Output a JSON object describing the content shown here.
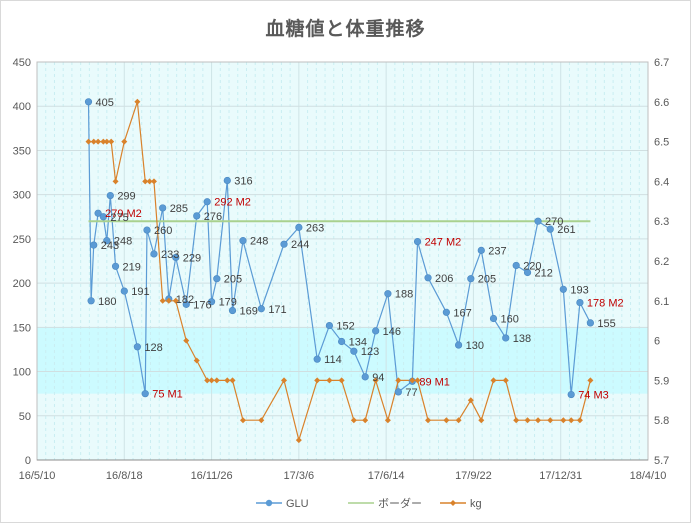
{
  "chart_data": {
    "type": "line",
    "title": "血糖値と体重推移",
    "x_axis": {
      "type": "date",
      "min": "2016-05-10",
      "max": "2018-04-10",
      "ticks": [
        "2016-05-10",
        "2016-08-18",
        "2016-11-26",
        "2017-03-06",
        "2017-06-14",
        "2017-09-22",
        "2017-12-31",
        "2018-04-10"
      ],
      "tick_labels": [
        "16/5/10",
        "16/8/18",
        "16/11/26",
        "17/3/6",
        "17/6/14",
        "17/9/22",
        "17/12/31",
        "18/4/10"
      ]
    },
    "y_left": {
      "min": 0,
      "max": 450,
      "step": 50,
      "tick_labels": [
        "0",
        "50",
        "100",
        "150",
        "200",
        "250",
        "300",
        "350",
        "400",
        "450"
      ]
    },
    "y_right": {
      "min": 5.7,
      "max": 6.7,
      "step": 0.1,
      "tick_labels": [
        "5.7",
        "5.8",
        "5.9",
        "6",
        "6.1",
        "6.2",
        "6.3",
        "6.4",
        "6.5",
        "6.6",
        "6.7"
      ]
    },
    "target_band": {
      "min": 75,
      "max": 150,
      "color": "#ccfbff"
    },
    "plot_background": "#e9fbfc",
    "grid": true,
    "legend_position": "bottom",
    "series": [
      {
        "name": "GLU",
        "axis": "left",
        "color": "#5b9bd5",
        "points": [
          {
            "x": "2016-07-08",
            "y": 405,
            "label": "405"
          },
          {
            "x": "2016-07-11",
            "y": 180,
            "label": "180"
          },
          {
            "x": "2016-07-14",
            "y": 243,
            "label": "243"
          },
          {
            "x": "2016-07-19",
            "y": 279,
            "label": "279 M2"
          },
          {
            "x": "2016-07-25",
            "y": 275,
            "label": "275"
          },
          {
            "x": "2016-07-29",
            "y": 248,
            "label": "248"
          },
          {
            "x": "2016-08-02",
            "y": 299,
            "label": "299"
          },
          {
            "x": "2016-08-08",
            "y": 219,
            "label": "219"
          },
          {
            "x": "2016-08-18",
            "y": 191,
            "label": "191"
          },
          {
            "x": "2016-09-02",
            "y": 128,
            "label": "128"
          },
          {
            "x": "2016-09-11",
            "y": 75,
            "label": "75 M1"
          },
          {
            "x": "2016-09-13",
            "y": 260,
            "label": "260"
          },
          {
            "x": "2016-09-21",
            "y": 233,
            "label": "233"
          },
          {
            "x": "2016-10-01",
            "y": 285,
            "label": "285"
          },
          {
            "x": "2016-10-08",
            "y": 182,
            "label": "182"
          },
          {
            "x": "2016-10-16",
            "y": 229,
            "label": "229"
          },
          {
            "x": "2016-10-28",
            "y": 176,
            "label": "176"
          },
          {
            "x": "2016-11-09",
            "y": 276,
            "label": "276"
          },
          {
            "x": "2016-11-21",
            "y": 292,
            "label": "292 M2"
          },
          {
            "x": "2016-11-26",
            "y": 179,
            "label": "179"
          },
          {
            "x": "2016-12-02",
            "y": 205,
            "label": "205"
          },
          {
            "x": "2016-12-14",
            "y": 316,
            "label": "316"
          },
          {
            "x": "2016-12-20",
            "y": 169,
            "label": "169"
          },
          {
            "x": "2017-01-01",
            "y": 248,
            "label": "248"
          },
          {
            "x": "2017-01-22",
            "y": 171,
            "label": "171"
          },
          {
            "x": "2017-02-17",
            "y": 244,
            "label": "244"
          },
          {
            "x": "2017-03-06",
            "y": 263,
            "label": "263"
          },
          {
            "x": "2017-03-27",
            "y": 114,
            "label": "114"
          },
          {
            "x": "2017-04-10",
            "y": 152,
            "label": "152"
          },
          {
            "x": "2017-04-24",
            "y": 134,
            "label": "134"
          },
          {
            "x": "2017-05-08",
            "y": 123,
            "label": "123"
          },
          {
            "x": "2017-05-21",
            "y": 94,
            "label": "94"
          },
          {
            "x": "2017-06-02",
            "y": 146,
            "label": "146"
          },
          {
            "x": "2017-06-16",
            "y": 188,
            "label": "188"
          },
          {
            "x": "2017-06-28",
            "y": 77,
            "label": "77"
          },
          {
            "x": "2017-07-14",
            "y": 89,
            "label": "89 M1"
          },
          {
            "x": "2017-07-20",
            "y": 247,
            "label": "247 M2"
          },
          {
            "x": "2017-08-01",
            "y": 206,
            "label": "206"
          },
          {
            "x": "2017-08-22",
            "y": 167,
            "label": "167"
          },
          {
            "x": "2017-09-05",
            "y": 130,
            "label": "130"
          },
          {
            "x": "2017-09-19",
            "y": 205,
            "label": "205"
          },
          {
            "x": "2017-10-01",
            "y": 237,
            "label": "237"
          },
          {
            "x": "2017-10-15",
            "y": 160,
            "label": "160"
          },
          {
            "x": "2017-10-29",
            "y": 138,
            "label": "138"
          },
          {
            "x": "2017-11-10",
            "y": 220,
            "label": "220"
          },
          {
            "x": "2017-11-23",
            "y": 212,
            "label": "212"
          },
          {
            "x": "2017-12-05",
            "y": 270,
            "label": "270"
          },
          {
            "x": "2017-12-19",
            "y": 261,
            "label": "261"
          },
          {
            "x": "2018-01-03",
            "y": 193,
            "label": "193"
          },
          {
            "x": "2018-01-12",
            "y": 74,
            "label": "74 M3"
          },
          {
            "x": "2018-01-22",
            "y": 178,
            "label": "178 M2"
          },
          {
            "x": "2018-02-03",
            "y": 155,
            "label": "155"
          }
        ]
      },
      {
        "name": "ボーダー",
        "axis": "left",
        "color": "#a9d18e",
        "points": [
          {
            "x": "2016-07-08",
            "y": 270
          },
          {
            "x": "2018-02-03",
            "y": 270
          }
        ]
      },
      {
        "name": "kg",
        "axis": "right",
        "color": "#d9822b",
        "points": [
          {
            "x": "2016-07-08",
            "y": 6.5
          },
          {
            "x": "2016-07-14",
            "y": 6.5
          },
          {
            "x": "2016-07-19",
            "y": 6.5
          },
          {
            "x": "2016-07-25",
            "y": 6.5
          },
          {
            "x": "2016-07-29",
            "y": 6.5
          },
          {
            "x": "2016-08-03",
            "y": 6.5
          },
          {
            "x": "2016-08-08",
            "y": 6.4
          },
          {
            "x": "2016-08-18",
            "y": 6.5
          },
          {
            "x": "2016-09-02",
            "y": 6.6
          },
          {
            "x": "2016-09-11",
            "y": 6.4
          },
          {
            "x": "2016-09-16",
            "y": 6.4
          },
          {
            "x": "2016-09-21",
            "y": 6.4
          },
          {
            "x": "2016-10-01",
            "y": 6.1
          },
          {
            "x": "2016-10-08",
            "y": 6.1
          },
          {
            "x": "2016-10-16",
            "y": 6.1
          },
          {
            "x": "2016-10-28",
            "y": 6.0
          },
          {
            "x": "2016-11-09",
            "y": 5.95
          },
          {
            "x": "2016-11-21",
            "y": 5.9
          },
          {
            "x": "2016-11-26",
            "y": 5.9
          },
          {
            "x": "2016-12-02",
            "y": 5.9
          },
          {
            "x": "2016-12-14",
            "y": 5.9
          },
          {
            "x": "2016-12-20",
            "y": 5.9
          },
          {
            "x": "2017-01-01",
            "y": 5.8
          },
          {
            "x": "2017-01-22",
            "y": 5.8
          },
          {
            "x": "2017-02-17",
            "y": 5.9
          },
          {
            "x": "2017-03-06",
            "y": 5.75
          },
          {
            "x": "2017-03-27",
            "y": 5.9
          },
          {
            "x": "2017-04-10",
            "y": 5.9
          },
          {
            "x": "2017-04-24",
            "y": 5.9
          },
          {
            "x": "2017-05-08",
            "y": 5.8
          },
          {
            "x": "2017-05-21",
            "y": 5.8
          },
          {
            "x": "2017-06-02",
            "y": 5.9
          },
          {
            "x": "2017-06-16",
            "y": 5.8
          },
          {
            "x": "2017-06-28",
            "y": 5.9
          },
          {
            "x": "2017-07-14",
            "y": 5.9
          },
          {
            "x": "2017-07-20",
            "y": 5.9
          },
          {
            "x": "2017-08-01",
            "y": 5.8
          },
          {
            "x": "2017-08-22",
            "y": 5.8
          },
          {
            "x": "2017-09-05",
            "y": 5.8
          },
          {
            "x": "2017-09-19",
            "y": 5.85
          },
          {
            "x": "2017-10-01",
            "y": 5.8
          },
          {
            "x": "2017-10-15",
            "y": 5.9
          },
          {
            "x": "2017-10-29",
            "y": 5.9
          },
          {
            "x": "2017-11-10",
            "y": 5.8
          },
          {
            "x": "2017-11-23",
            "y": 5.8
          },
          {
            "x": "2017-12-05",
            "y": 5.8
          },
          {
            "x": "2017-12-19",
            "y": 5.8
          },
          {
            "x": "2018-01-03",
            "y": 5.8
          },
          {
            "x": "2018-01-12",
            "y": 5.8
          },
          {
            "x": "2018-01-22",
            "y": 5.8
          },
          {
            "x": "2018-02-03",
            "y": 5.9
          }
        ]
      }
    ]
  }
}
